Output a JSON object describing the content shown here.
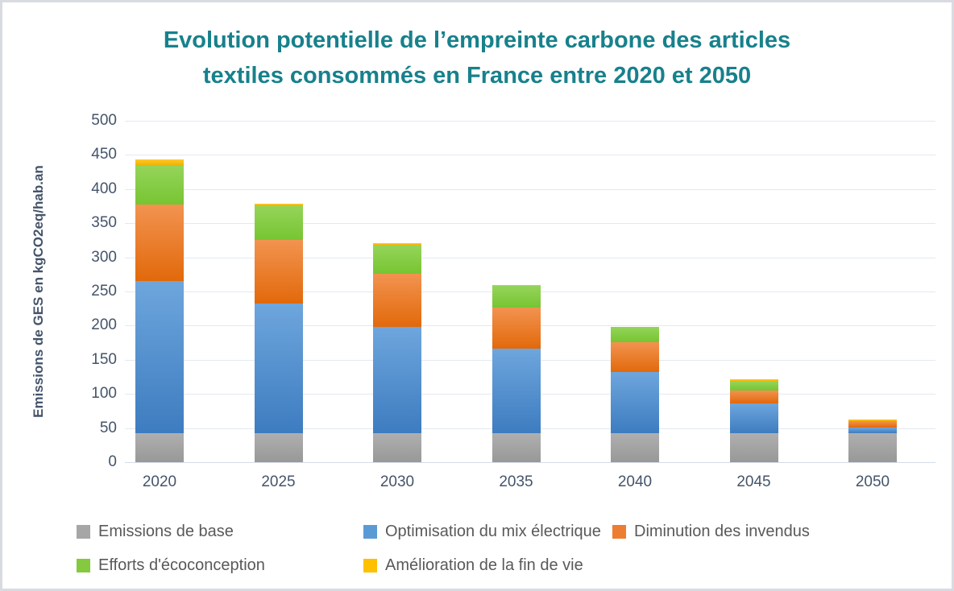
{
  "page": {
    "title_line1": "Evolution potentielle de l’empreinte carbone des articles",
    "title_line2": "textiles consommés en France entre 2020 et 2050",
    "title_color": "#17818C",
    "axis_color": "#44546A",
    "grid_color": "#E3E9F2",
    "legend_text_color": "#595959",
    "border_color": "#d9dbe2"
  },
  "chart_data": {
    "type": "bar",
    "stacked": true,
    "title": "Evolution potentielle de l’empreinte carbone des articles textiles consommés en France entre 2020 et 2050",
    "ylabel": "Emissions de GES en kgCO2eq/hab.an",
    "xlabel": "",
    "ylim": [
      0,
      500
    ],
    "yticks": [
      0,
      50,
      100,
      150,
      200,
      250,
      300,
      350,
      400,
      450,
      500
    ],
    "grid": true,
    "legend_position": "bottom",
    "categories": [
      "2020",
      "2025",
      "2030",
      "2035",
      "2040",
      "2045",
      "2050"
    ],
    "series": [
      {
        "name": "Emissions de base",
        "color": "#A6A6A6",
        "gradient": [
          "#AFAFAF",
          "#989898"
        ],
        "values": [
          42,
          42,
          42,
          42,
          42,
          42,
          42
        ]
      },
      {
        "name": "Optimisation du mix électrique",
        "color": "#5B9BD5",
        "gradient": [
          "#6EA6DD",
          "#3D7CC0"
        ],
        "values": [
          223,
          190,
          156,
          124,
          90,
          44,
          9
        ]
      },
      {
        "name": "Diminution des invendus",
        "color": "#ED7D31",
        "gradient": [
          "#F29350",
          "#E2690B"
        ],
        "values": [
          112,
          94,
          78,
          60,
          44,
          19,
          9
        ]
      },
      {
        "name": "Efforts d'écoconception",
        "color": "#84C93E",
        "gradient": [
          "#95D45A",
          "#77C532"
        ],
        "values": [
          57,
          49,
          41,
          32,
          22,
          13,
          0
        ]
      },
      {
        "name": "Amélioration de la fin de vie",
        "color": "#FFC000",
        "gradient": [
          "#FFC929",
          "#EFAF00"
        ],
        "values": [
          9,
          4,
          4,
          2,
          0,
          3,
          2
        ]
      }
    ]
  }
}
